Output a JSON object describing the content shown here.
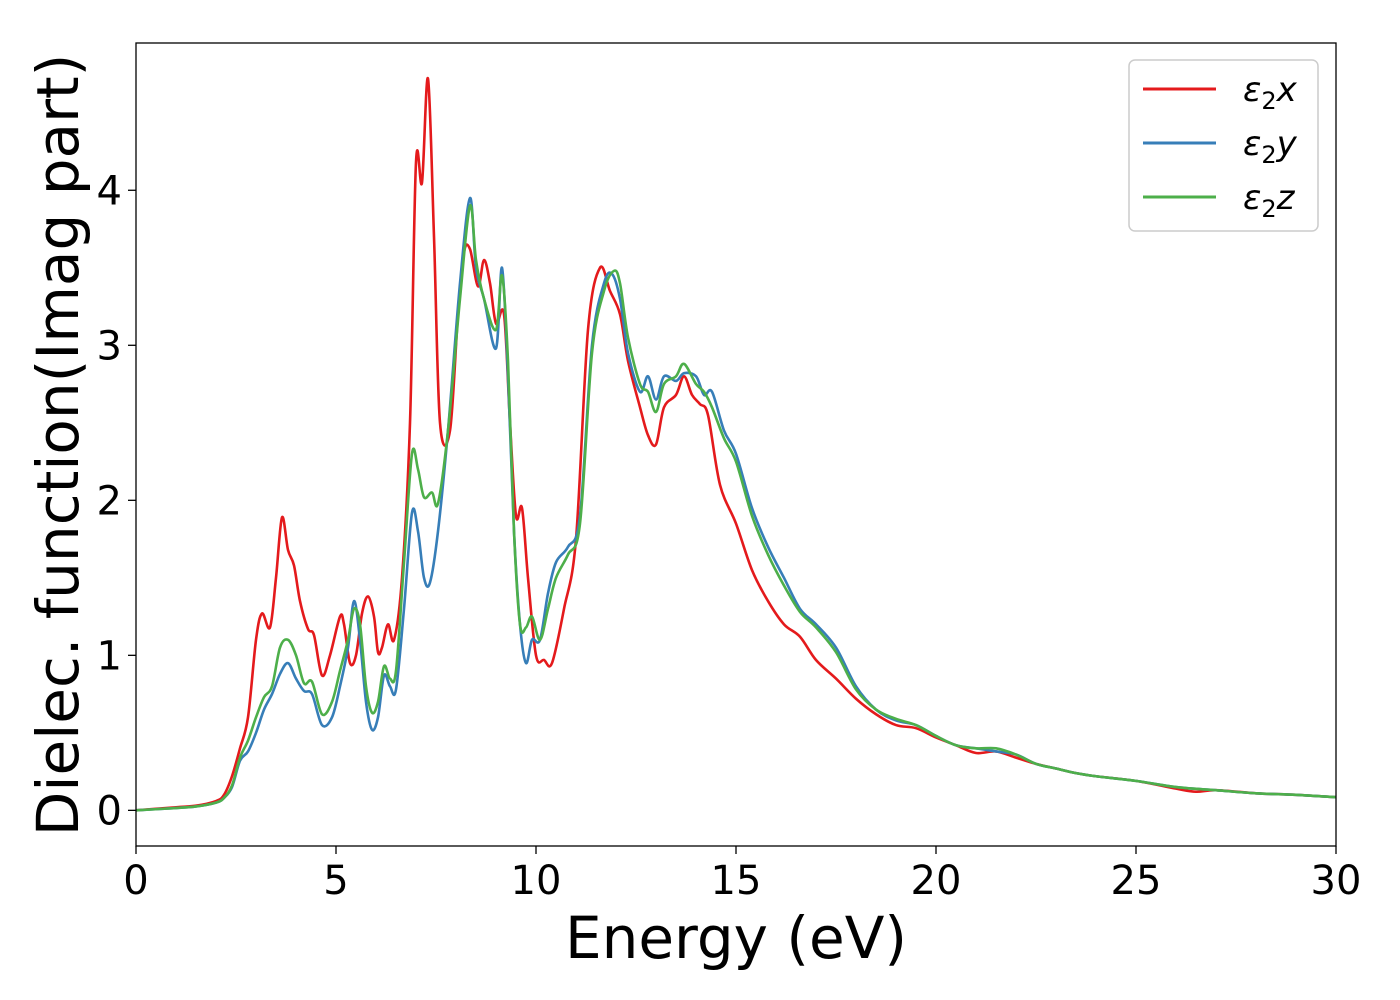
{
  "chart_data": {
    "type": "line",
    "title": "",
    "xlabel": "Energy (eV)",
    "ylabel": "Dielec. function(Imag part)",
    "xlim": [
      0,
      30
    ],
    "ylim": [
      -0.23,
      4.95
    ],
    "xticks": [
      0,
      5,
      10,
      15,
      20,
      25,
      30
    ],
    "yticks": [
      0,
      1,
      2,
      3,
      4
    ],
    "grid": false,
    "legend_position": "top-right",
    "series": [
      {
        "name": "ε₂x",
        "legend_base": "ε",
        "legend_sub": "2",
        "legend_tail": "x",
        "color": "#e41a1c",
        "points": [
          [
            0,
            0
          ],
          [
            1,
            0.02
          ],
          [
            1.5,
            0.03
          ],
          [
            2,
            0.06
          ],
          [
            2.2,
            0.1
          ],
          [
            2.4,
            0.22
          ],
          [
            2.6,
            0.4
          ],
          [
            2.8,
            0.6
          ],
          [
            3.0,
            1.1
          ],
          [
            3.15,
            1.27
          ],
          [
            3.35,
            1.18
          ],
          [
            3.5,
            1.5
          ],
          [
            3.65,
            1.89
          ],
          [
            3.8,
            1.68
          ],
          [
            3.95,
            1.58
          ],
          [
            4.1,
            1.35
          ],
          [
            4.3,
            1.17
          ],
          [
            4.45,
            1.13
          ],
          [
            4.65,
            0.87
          ],
          [
            4.85,
            1.0
          ],
          [
            5.1,
            1.25
          ],
          [
            5.2,
            1.2
          ],
          [
            5.35,
            0.95
          ],
          [
            5.5,
            1.0
          ],
          [
            5.65,
            1.27
          ],
          [
            5.8,
            1.38
          ],
          [
            5.95,
            1.25
          ],
          [
            6.05,
            1.02
          ],
          [
            6.15,
            1.05
          ],
          [
            6.3,
            1.2
          ],
          [
            6.45,
            1.1
          ],
          [
            6.65,
            1.5
          ],
          [
            6.85,
            2.5
          ],
          [
            7.0,
            4.18
          ],
          [
            7.15,
            4.05
          ],
          [
            7.3,
            4.72
          ],
          [
            7.45,
            3.7
          ],
          [
            7.6,
            2.5
          ],
          [
            7.85,
            2.45
          ],
          [
            8.05,
            3.2
          ],
          [
            8.2,
            3.6
          ],
          [
            8.35,
            3.62
          ],
          [
            8.55,
            3.38
          ],
          [
            8.7,
            3.55
          ],
          [
            8.85,
            3.4
          ],
          [
            9.0,
            3.14
          ],
          [
            9.2,
            3.2
          ],
          [
            9.35,
            2.5
          ],
          [
            9.5,
            1.9
          ],
          [
            9.65,
            1.95
          ],
          [
            9.8,
            1.5
          ],
          [
            10.0,
            1.0
          ],
          [
            10.2,
            0.97
          ],
          [
            10.4,
            0.95
          ],
          [
            10.7,
            1.3
          ],
          [
            11.0,
            1.75
          ],
          [
            11.3,
            3.1
          ],
          [
            11.6,
            3.5
          ],
          [
            11.85,
            3.35
          ],
          [
            12.1,
            3.2
          ],
          [
            12.3,
            2.9
          ],
          [
            12.6,
            2.6
          ],
          [
            12.8,
            2.42
          ],
          [
            13.0,
            2.36
          ],
          [
            13.2,
            2.6
          ],
          [
            13.5,
            2.68
          ],
          [
            13.7,
            2.8
          ],
          [
            13.9,
            2.68
          ],
          [
            14.1,
            2.62
          ],
          [
            14.3,
            2.55
          ],
          [
            14.6,
            2.1
          ],
          [
            15.0,
            1.85
          ],
          [
            15.4,
            1.55
          ],
          [
            15.8,
            1.35
          ],
          [
            16.2,
            1.2
          ],
          [
            16.6,
            1.12
          ],
          [
            17.0,
            0.97
          ],
          [
            17.5,
            0.85
          ],
          [
            18.0,
            0.72
          ],
          [
            18.5,
            0.62
          ],
          [
            19.0,
            0.55
          ],
          [
            19.5,
            0.53
          ],
          [
            20.0,
            0.47
          ],
          [
            20.5,
            0.42
          ],
          [
            21.0,
            0.37
          ],
          [
            21.5,
            0.38
          ],
          [
            22.0,
            0.34
          ],
          [
            22.5,
            0.3
          ],
          [
            23.0,
            0.27
          ],
          [
            23.5,
            0.24
          ],
          [
            24.0,
            0.22
          ],
          [
            25.0,
            0.19
          ],
          [
            26.0,
            0.14
          ],
          [
            26.5,
            0.12
          ],
          [
            27.0,
            0.13
          ],
          [
            28.0,
            0.11
          ],
          [
            29.0,
            0.1
          ],
          [
            30.0,
            0.085
          ]
        ]
      },
      {
        "name": "ε₂y",
        "legend_base": "ε",
        "legend_sub": "2",
        "legend_tail": "y",
        "color": "#377eb8",
        "points": [
          [
            0,
            0
          ],
          [
            1,
            0.015
          ],
          [
            1.5,
            0.025
          ],
          [
            2,
            0.05
          ],
          [
            2.2,
            0.08
          ],
          [
            2.4,
            0.15
          ],
          [
            2.6,
            0.32
          ],
          [
            2.8,
            0.38
          ],
          [
            3.0,
            0.5
          ],
          [
            3.2,
            0.65
          ],
          [
            3.4,
            0.75
          ],
          [
            3.6,
            0.88
          ],
          [
            3.8,
            0.95
          ],
          [
            4.0,
            0.85
          ],
          [
            4.2,
            0.77
          ],
          [
            4.4,
            0.75
          ],
          [
            4.65,
            0.55
          ],
          [
            4.9,
            0.6
          ],
          [
            5.1,
            0.8
          ],
          [
            5.3,
            1.05
          ],
          [
            5.45,
            1.35
          ],
          [
            5.6,
            1.1
          ],
          [
            5.75,
            0.7
          ],
          [
            5.9,
            0.52
          ],
          [
            6.05,
            0.6
          ],
          [
            6.2,
            0.87
          ],
          [
            6.35,
            0.8
          ],
          [
            6.5,
            0.78
          ],
          [
            6.7,
            1.3
          ],
          [
            6.9,
            1.92
          ],
          [
            7.05,
            1.8
          ],
          [
            7.2,
            1.5
          ],
          [
            7.35,
            1.47
          ],
          [
            7.55,
            1.8
          ],
          [
            7.8,
            2.45
          ],
          [
            8.1,
            3.4
          ],
          [
            8.35,
            3.95
          ],
          [
            8.5,
            3.5
          ],
          [
            8.7,
            3.3
          ],
          [
            9.0,
            2.98
          ],
          [
            9.15,
            3.5
          ],
          [
            9.3,
            2.8
          ],
          [
            9.45,
            1.8
          ],
          [
            9.6,
            1.2
          ],
          [
            9.75,
            0.95
          ],
          [
            9.9,
            1.1
          ],
          [
            10.1,
            1.1
          ],
          [
            10.3,
            1.4
          ],
          [
            10.5,
            1.6
          ],
          [
            10.8,
            1.7
          ],
          [
            11.1,
            1.9
          ],
          [
            11.4,
            3.0
          ],
          [
            11.7,
            3.4
          ],
          [
            11.9,
            3.46
          ],
          [
            12.1,
            3.3
          ],
          [
            12.3,
            2.95
          ],
          [
            12.6,
            2.7
          ],
          [
            12.8,
            2.8
          ],
          [
            13.0,
            2.65
          ],
          [
            13.2,
            2.8
          ],
          [
            13.5,
            2.77
          ],
          [
            13.7,
            2.82
          ],
          [
            14.0,
            2.8
          ],
          [
            14.2,
            2.68
          ],
          [
            14.4,
            2.7
          ],
          [
            14.7,
            2.45
          ],
          [
            15.0,
            2.3
          ],
          [
            15.4,
            1.95
          ],
          [
            15.8,
            1.7
          ],
          [
            16.2,
            1.5
          ],
          [
            16.6,
            1.3
          ],
          [
            17.0,
            1.2
          ],
          [
            17.5,
            1.05
          ],
          [
            18.0,
            0.8
          ],
          [
            18.5,
            0.65
          ],
          [
            19.0,
            0.58
          ],
          [
            19.5,
            0.55
          ],
          [
            20.0,
            0.48
          ],
          [
            20.5,
            0.42
          ],
          [
            21.0,
            0.4
          ],
          [
            21.5,
            0.38
          ],
          [
            22.0,
            0.36
          ],
          [
            22.5,
            0.3
          ],
          [
            23.0,
            0.27
          ],
          [
            23.5,
            0.24
          ],
          [
            24.0,
            0.22
          ],
          [
            25.0,
            0.19
          ],
          [
            26.0,
            0.15
          ],
          [
            27.0,
            0.13
          ],
          [
            28.0,
            0.11
          ],
          [
            29.0,
            0.1
          ],
          [
            30.0,
            0.085
          ]
        ]
      },
      {
        "name": "ε₂z",
        "legend_base": "ε",
        "legend_sub": "2",
        "legend_tail": "z",
        "color": "#4daf4a",
        "points": [
          [
            0,
            0
          ],
          [
            1,
            0.015
          ],
          [
            1.5,
            0.025
          ],
          [
            2,
            0.05
          ],
          [
            2.2,
            0.08
          ],
          [
            2.4,
            0.16
          ],
          [
            2.6,
            0.34
          ],
          [
            2.8,
            0.45
          ],
          [
            3.0,
            0.6
          ],
          [
            3.2,
            0.73
          ],
          [
            3.4,
            0.8
          ],
          [
            3.6,
            1.05
          ],
          [
            3.8,
            1.1
          ],
          [
            4.0,
            1.0
          ],
          [
            4.2,
            0.82
          ],
          [
            4.4,
            0.83
          ],
          [
            4.65,
            0.62
          ],
          [
            4.9,
            0.7
          ],
          [
            5.1,
            0.9
          ],
          [
            5.3,
            1.1
          ],
          [
            5.45,
            1.3
          ],
          [
            5.6,
            1.2
          ],
          [
            5.75,
            0.8
          ],
          [
            5.9,
            0.63
          ],
          [
            6.05,
            0.7
          ],
          [
            6.2,
            0.93
          ],
          [
            6.35,
            0.85
          ],
          [
            6.5,
            0.9
          ],
          [
            6.7,
            1.6
          ],
          [
            6.9,
            2.3
          ],
          [
            7.05,
            2.2
          ],
          [
            7.2,
            2.02
          ],
          [
            7.4,
            2.05
          ],
          [
            7.55,
            1.98
          ],
          [
            7.8,
            2.45
          ],
          [
            8.1,
            3.3
          ],
          [
            8.35,
            3.9
          ],
          [
            8.5,
            3.55
          ],
          [
            8.7,
            3.3
          ],
          [
            9.0,
            3.1
          ],
          [
            9.15,
            3.45
          ],
          [
            9.3,
            2.9
          ],
          [
            9.45,
            1.8
          ],
          [
            9.6,
            1.2
          ],
          [
            9.75,
            1.18
          ],
          [
            9.9,
            1.25
          ],
          [
            10.1,
            1.1
          ],
          [
            10.3,
            1.3
          ],
          [
            10.5,
            1.5
          ],
          [
            10.8,
            1.65
          ],
          [
            11.1,
            1.85
          ],
          [
            11.4,
            2.95
          ],
          [
            11.7,
            3.35
          ],
          [
            11.95,
            3.48
          ],
          [
            12.1,
            3.4
          ],
          [
            12.3,
            3.05
          ],
          [
            12.6,
            2.75
          ],
          [
            12.8,
            2.7
          ],
          [
            13.0,
            2.57
          ],
          [
            13.2,
            2.75
          ],
          [
            13.5,
            2.8
          ],
          [
            13.7,
            2.88
          ],
          [
            14.0,
            2.75
          ],
          [
            14.2,
            2.7
          ],
          [
            14.4,
            2.6
          ],
          [
            14.7,
            2.4
          ],
          [
            15.0,
            2.25
          ],
          [
            15.4,
            1.9
          ],
          [
            15.8,
            1.65
          ],
          [
            16.2,
            1.45
          ],
          [
            16.6,
            1.28
          ],
          [
            17.0,
            1.18
          ],
          [
            17.5,
            1.02
          ],
          [
            18.0,
            0.78
          ],
          [
            18.5,
            0.65
          ],
          [
            19.0,
            0.59
          ],
          [
            19.5,
            0.55
          ],
          [
            20.0,
            0.48
          ],
          [
            20.5,
            0.42
          ],
          [
            21.0,
            0.4
          ],
          [
            21.5,
            0.4
          ],
          [
            22.0,
            0.36
          ],
          [
            22.5,
            0.3
          ],
          [
            23.0,
            0.27
          ],
          [
            23.5,
            0.24
          ],
          [
            24.0,
            0.22
          ],
          [
            25.0,
            0.19
          ],
          [
            26.0,
            0.15
          ],
          [
            27.0,
            0.13
          ],
          [
            28.0,
            0.11
          ],
          [
            29.0,
            0.1
          ],
          [
            30.0,
            0.085
          ]
        ]
      }
    ]
  }
}
